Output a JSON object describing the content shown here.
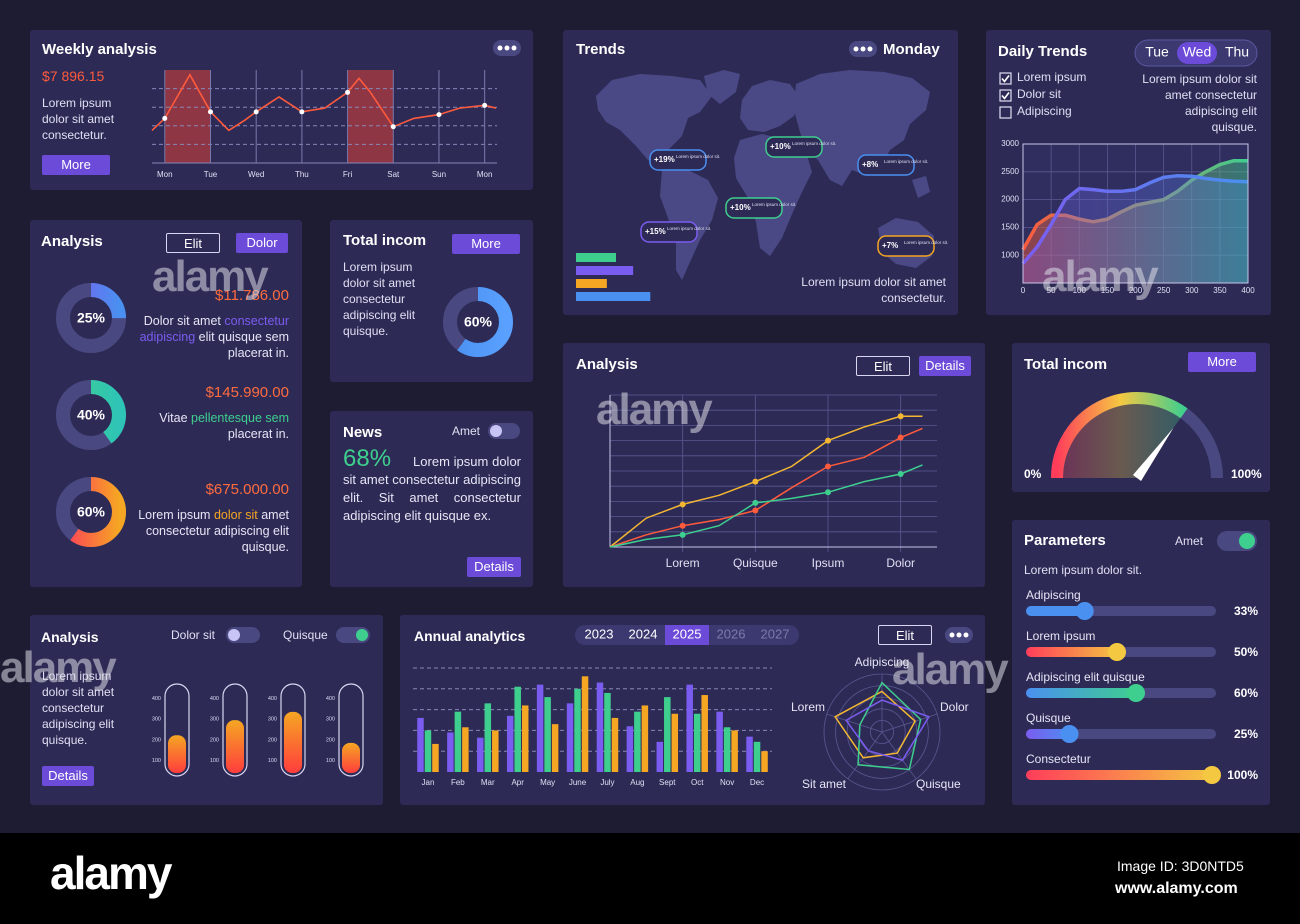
{
  "watermark": "alamy",
  "weekly": {
    "title": "Weekly analysis",
    "amount": "$7 896.15",
    "text": "Lorem ipsum dolor sit amet consectetur.",
    "button": "More",
    "days": [
      "Mon",
      "Tue",
      "Wed",
      "Thu",
      "Fri",
      "Sat",
      "Sun",
      "Mon"
    ],
    "highlights": [
      [
        0,
        1
      ],
      [
        4,
        5
      ]
    ],
    "highlight_color": "#a83a40",
    "x": [
      -0.28,
      0,
      0.55,
      1,
      1.4,
      1.75,
      2,
      2.5,
      3,
      3.5,
      4,
      4.25,
      4.5,
      5,
      5.45,
      6,
      6.45,
      7,
      7.25
    ],
    "values": [
      35,
      48,
      95,
      55,
      35,
      46,
      55,
      71,
      55,
      59,
      76,
      91,
      76,
      39,
      48,
      52,
      59,
      62,
      59
    ],
    "xlim": [
      -0.28,
      7.27
    ],
    "ylim": [
      0,
      100
    ],
    "yticks": [
      20,
      40,
      60,
      80
    ],
    "color": "#ff5a3c"
  },
  "trends": {
    "title": "Trends",
    "day": "Monday",
    "tags": [
      {
        "value": "+19%",
        "text": "Lorem ipsum dolor sit.",
        "color": "#4a90f0"
      },
      {
        "value": "+10%",
        "text": "Lorem ipsum dolor sit.",
        "color": "#3ecf8e"
      },
      {
        "value": "+8%",
        "text": "Lorem ipsum dolor sit.",
        "color": "#4a90f0"
      },
      {
        "value": "+10%",
        "text": "Lorem ipsum dolor sit.",
        "color": "#3ecf8e"
      },
      {
        "value": "+15%",
        "text": "Lorem ipsum dolor sit.",
        "color": "#7b5cf0"
      },
      {
        "value": "+7%",
        "text": "Lorem ipsum dolor sit.",
        "color": "#f5a623"
      }
    ],
    "text": "Lorem ipsum dolor sit amet consectetur.",
    "bars": {
      "xlim": [
        0,
        70
      ],
      "values": [
        35,
        50,
        27,
        65
      ],
      "colors": [
        "#3ecf8e",
        "#7b5cf0",
        "#f5a623",
        "#4a90f0"
      ]
    }
  },
  "daily": {
    "title": "Daily Trends",
    "tabs": [
      "Tue",
      "Wed",
      "Thu"
    ],
    "active_tab": 1,
    "checks": [
      {
        "label": "Lorem ipsum",
        "checked": true
      },
      {
        "label": "Dolor sit",
        "checked": true
      },
      {
        "label": "Adipiscing",
        "checked": false
      }
    ],
    "text": "Lorem ipsum dolor sit amet consectetur adipiscing elit quisque.",
    "chart": {
      "type": "area",
      "x": [
        0,
        25,
        50,
        75,
        100,
        125,
        150,
        175,
        200,
        225,
        250,
        275,
        300,
        325,
        350,
        375,
        400
      ],
      "xlim": [
        0,
        400
      ],
      "ylim": [
        500,
        3000
      ],
      "xticks": [
        0,
        50,
        100,
        150,
        200,
        250,
        300,
        350,
        400
      ],
      "yticks": [
        1000,
        1500,
        2000,
        2500,
        3000
      ],
      "grid": true,
      "series": [
        {
          "colors": [
            "#ff5a3c",
            "#3ecf8e"
          ],
          "values": [
            1100,
            1550,
            1720,
            1720,
            1650,
            1600,
            1650,
            1780,
            1900,
            1950,
            2000,
            2150,
            2350,
            2500,
            2630,
            2700,
            2700
          ]
        },
        {
          "colors": [
            "#7b5cf0",
            "#4a90f0"
          ],
          "values": [
            850,
            1150,
            1550,
            2000,
            2200,
            2180,
            2150,
            2150,
            2180,
            2300,
            2400,
            2430,
            2420,
            2380,
            2350,
            2330,
            2320
          ]
        }
      ]
    }
  },
  "donuts": {
    "title": "Analysis",
    "buttons": [
      "Elit",
      "Dolor"
    ],
    "items": [
      {
        "value": 25,
        "label": "25%",
        "colors": [
          "#7b5cf0",
          "#4a90f0"
        ],
        "amount": "$11.786.00",
        "text": [
          {
            "text": "Dolor sit amet"
          },
          {
            "text": "consectetur adipiscing",
            "color": "#7b5cf0"
          },
          {
            "text": "elit quisque sem placerat in."
          }
        ]
      },
      {
        "value": 40,
        "label": "40%",
        "colors": [
          "#3ecf8e",
          "#2ec4b6"
        ],
        "amount": "$145.990.00",
        "text": [
          {
            "text": "Vitae"
          },
          {
            "text": "pellentesque sem",
            "color": "#3ecf8e"
          },
          {
            "text": "placerat in."
          }
        ]
      },
      {
        "value": 60,
        "label": "60%",
        "colors": [
          "#ff3d5a",
          "#f5a623"
        ],
        "amount": "$675.000.00",
        "text": [
          {
            "text": "Lorem ipsum"
          },
          {
            "text": "dolor sit",
            "color": "#f5a623"
          },
          {
            "text": "amet consectetur adipiscing elit quisque."
          }
        ]
      }
    ]
  },
  "income": {
    "title": "Total incom",
    "button": "More",
    "text": "Lorem ipsum dolor sit amet consectetur adipiscing elit quisque.",
    "value": 60,
    "label": "60%",
    "colors": [
      "#4a90f0",
      "#5aa0ff"
    ]
  },
  "news": {
    "title": "News",
    "toggle": {
      "label": "Amet",
      "on": false
    },
    "percent": "68%",
    "text": "Lorem ipsum dolor sit amet consectetur adipiscing elit. Sit amet consectetur adipiscing elit quisque ex.",
    "button": "Details"
  },
  "lines": {
    "title": "Analysis",
    "buttons": [
      "Elit",
      "Details"
    ],
    "chart": {
      "type": "line",
      "x": [
        0,
        1,
        2,
        3,
        4,
        5,
        6,
        7,
        8,
        8.6
      ],
      "xlim": [
        0,
        9
      ],
      "ylim": [
        0,
        100
      ],
      "xticks": [
        {
          "value": 2,
          "label": "Lorem"
        },
        {
          "value": 4,
          "label": "Quisque"
        },
        {
          "value": 6,
          "label": "Ipsum"
        },
        {
          "value": 8,
          "label": "Dolor"
        }
      ],
      "yticks": [
        0,
        10,
        20,
        30,
        40,
        50,
        60,
        70,
        80,
        90,
        100
      ],
      "series": [
        {
          "color": "#f5b731",
          "values": [
            0,
            19,
            28,
            34,
            43,
            53,
            70,
            79,
            86,
            86
          ]
        },
        {
          "color": "#ff5a3c",
          "values": [
            0,
            8,
            14,
            18,
            24,
            39,
            53,
            59,
            72,
            78
          ]
        },
        {
          "color": "#3ecf8e",
          "values": [
            0,
            5,
            8,
            14,
            29,
            32,
            36,
            43,
            48,
            54
          ]
        }
      ]
    }
  },
  "gauge": {
    "title": "Total incom",
    "button": "More",
    "min_label": "0%",
    "max_label": "100%",
    "value": 70,
    "ylim": [
      0,
      100
    ],
    "colors": [
      "#ff3d5a",
      "#f5c842",
      "#3ecf8e"
    ]
  },
  "params": {
    "title": "Parameters",
    "toggle": {
      "label": "Amet",
      "on": true
    },
    "subtitle": "Lorem ipsum dolor sit.",
    "xlim": [
      0,
      100
    ],
    "sliders": [
      {
        "name": "Adipiscing",
        "value": 33,
        "label": "33%",
        "colors": [
          "#4a90f0",
          "#4a90f0"
        ]
      },
      {
        "name": "Lorem ipsum",
        "value": 50,
        "label": "50%",
        "colors": [
          "#ff3d5a",
          "#f5c842"
        ]
      },
      {
        "name": "Adipiscing elit quisque",
        "value": 60,
        "label": "60%",
        "colors": [
          "#4a90f0",
          "#3ecf8e"
        ]
      },
      {
        "name": "Quisque",
        "value": 25,
        "label": "25%",
        "colors": [
          "#7b5cf0",
          "#4a90f0"
        ]
      },
      {
        "name": "Consectetur",
        "value": 100,
        "label": "100%",
        "colors": [
          "#ff3d5a",
          "#f5c842"
        ]
      }
    ]
  },
  "tubes": {
    "title": "Analysis",
    "toggles": [
      {
        "label": "Dolor sit",
        "on": false
      },
      {
        "label": "Quisque",
        "on": true
      }
    ],
    "text": "Lorem ipsum dolor sit amet consectetur adipiscing elit quisque.",
    "button": "Details",
    "ylim": [
      25,
      470
    ],
    "yticks": [
      100,
      200,
      300,
      400
    ],
    "values": [
      222,
      295,
      335,
      185
    ],
    "colors": [
      "#f5a623",
      "#ff3d3d"
    ]
  },
  "annual": {
    "title": "Annual analytics",
    "years": [
      "2023",
      "2024",
      "2025",
      "2026",
      "2027"
    ],
    "active_year": 2,
    "button": "Elit",
    "bars": {
      "type": "bar",
      "categories": [
        "Jan",
        "Feb",
        "Mar",
        "Apr",
        "May",
        "June",
        "July",
        "Aug",
        "Sept",
        "Oct",
        "Nov",
        "Dec"
      ],
      "ylim": [
        0,
        100
      ],
      "yticks": [
        20,
        40,
        60,
        80,
        100
      ],
      "series": [
        {
          "color": "#7b5cf0",
          "values": [
            52,
            38,
            33,
            54,
            84,
            66,
            86,
            44,
            29,
            84,
            58,
            34
          ]
        },
        {
          "color": "#3ecf8e",
          "values": [
            40,
            58,
            66,
            82,
            72,
            80,
            76,
            58,
            72,
            56,
            43,
            29
          ]
        },
        {
          "color": "#f5a623",
          "values": [
            27,
            43,
            40,
            64,
            46,
            92,
            52,
            64,
            56,
            74,
            40,
            20
          ]
        }
      ]
    },
    "radar": {
      "type": "radar",
      "axes": [
        "Adipiscing",
        "Dolor",
        "Quisque",
        "Sit amet",
        "Lorem"
      ],
      "rlim": [
        0,
        100
      ],
      "rticks": [
        20,
        40,
        60,
        80,
        100
      ],
      "series": [
        {
          "color": "#f5b731",
          "values": [
            70,
            60,
            45,
            55,
            85
          ]
        },
        {
          "color": "#3ecf8e",
          "values": [
            85,
            70,
            80,
            70,
            40
          ]
        },
        {
          "color": "#7b5cf0",
          "values": [
            55,
            85,
            60,
            40,
            65
          ]
        }
      ]
    }
  },
  "footer": {
    "logo": "alamy",
    "image_id": "Image ID: 3D0NTD5",
    "url": "www.alamy.com"
  }
}
